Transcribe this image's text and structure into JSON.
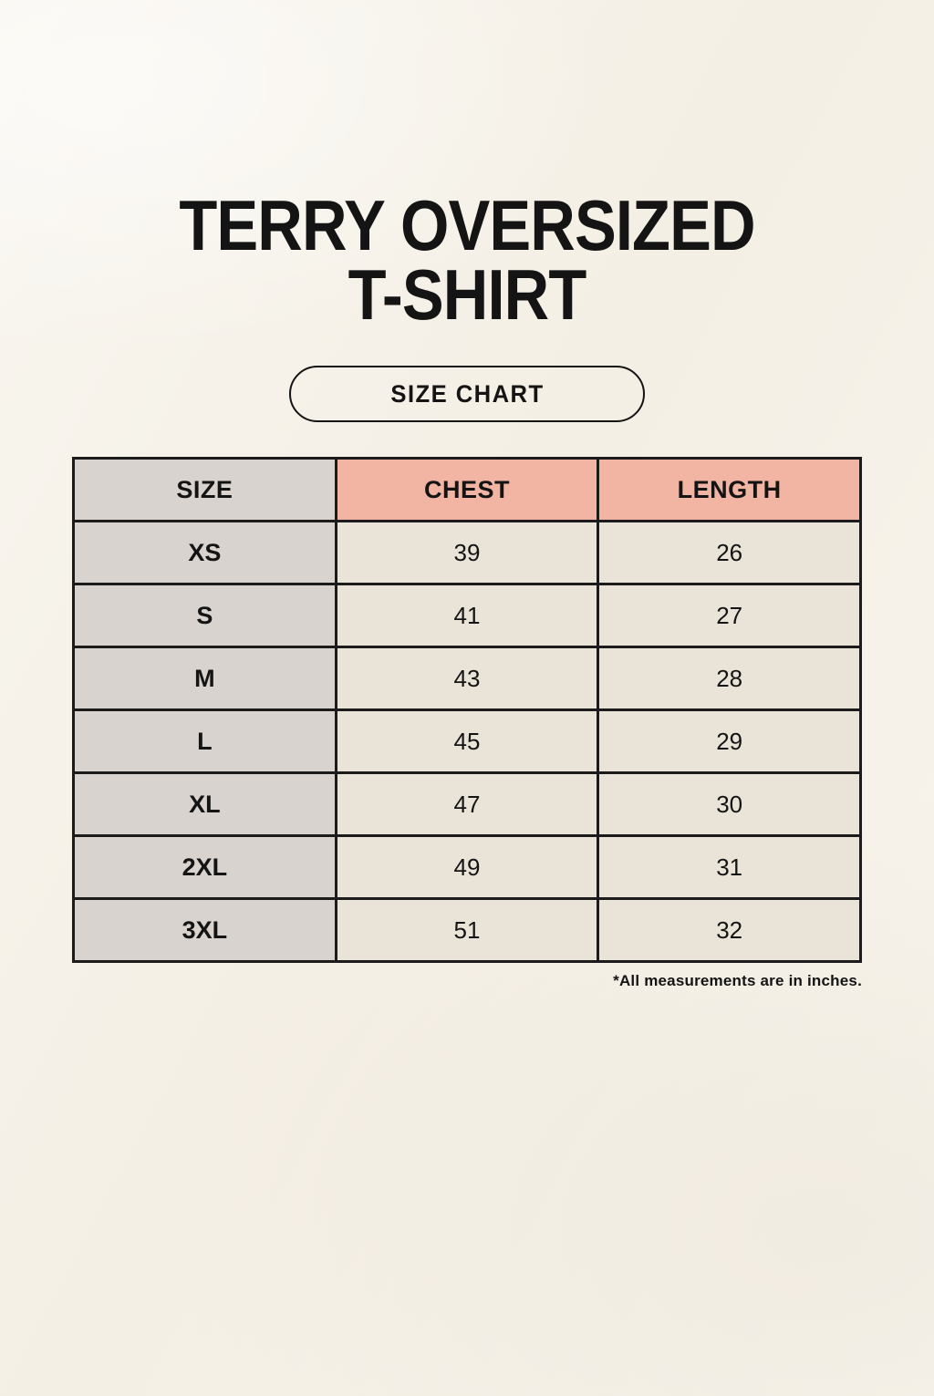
{
  "title": {
    "line1": "TERRY OVERSIZED",
    "line2": "T-SHIRT"
  },
  "size_chart_badge": "SIZE CHART",
  "footnote": "*All measurements are in inches.",
  "chart_data": {
    "type": "table",
    "columns": [
      "SIZE",
      "CHEST",
      "LENGTH"
    ],
    "rows": [
      {
        "size": "XS",
        "chest": "39",
        "length": "26"
      },
      {
        "size": "S",
        "chest": "41",
        "length": "27"
      },
      {
        "size": "M",
        "chest": "43",
        "length": "28"
      },
      {
        "size": "L",
        "chest": "45",
        "length": "29"
      },
      {
        "size": "XL",
        "chest": "47",
        "length": "30"
      },
      {
        "size": "2XL",
        "chest": "49",
        "length": "31"
      },
      {
        "size": "3XL",
        "chest": "51",
        "length": "32"
      }
    ]
  },
  "colors": {
    "background": "#f6f2e9",
    "size_column_bg": "#d9d3cf",
    "header_accent_bg": "#f2b4a3",
    "data_cell_bg": "#eae4d8",
    "border": "#1b1b1b",
    "text": "#141414"
  }
}
